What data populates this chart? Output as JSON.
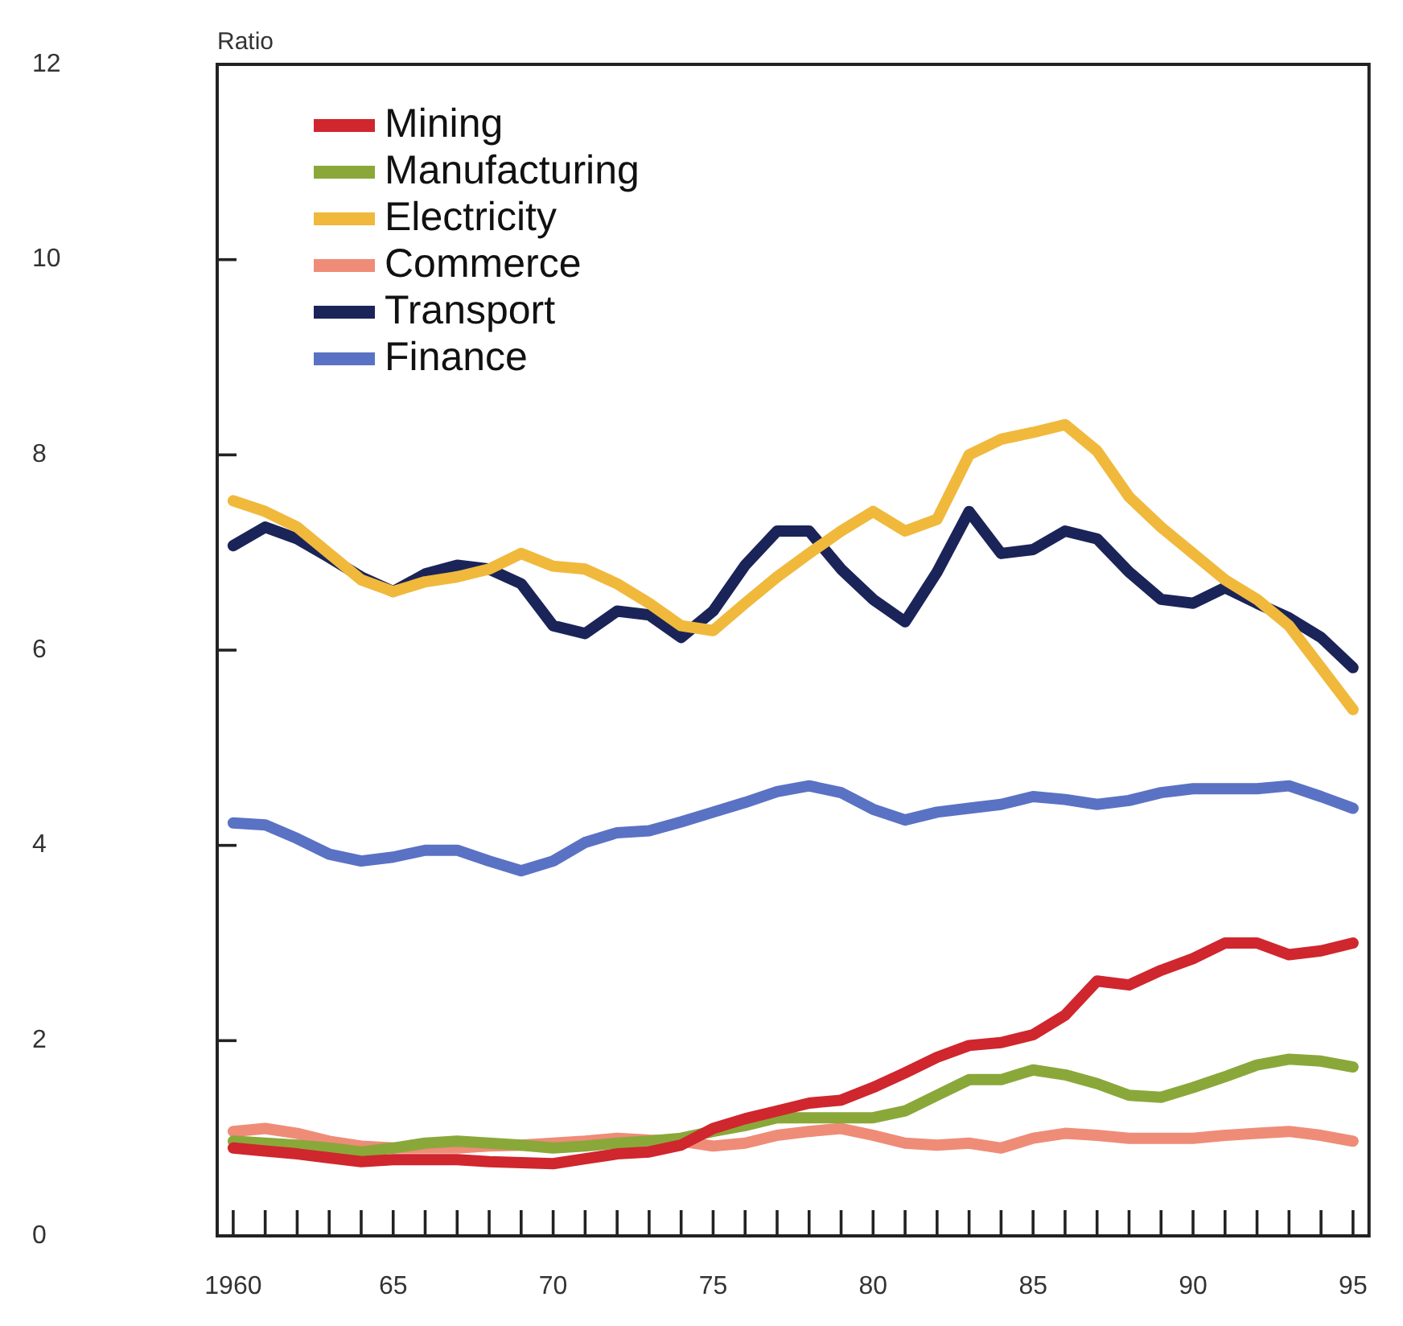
{
  "chart_data": {
    "type": "line",
    "ylabel": "Ratio",
    "x": [
      1960,
      1961,
      1962,
      1963,
      1964,
      1965,
      1966,
      1967,
      1968,
      1969,
      1970,
      1971,
      1972,
      1973,
      1974,
      1975,
      1976,
      1977,
      1978,
      1979,
      1980,
      1981,
      1982,
      1983,
      1984,
      1985,
      1986,
      1987,
      1988,
      1989,
      1990,
      1991,
      1992,
      1993,
      1994,
      1995
    ],
    "series": [
      {
        "name": "Mining",
        "color": "#d0262e",
        "values": [
          0.9,
          0.87,
          0.84,
          0.8,
          0.76,
          0.78,
          0.78,
          0.78,
          0.76,
          0.75,
          0.74,
          0.79,
          0.84,
          0.86,
          0.93,
          1.1,
          1.2,
          1.28,
          1.36,
          1.39,
          1.52,
          1.67,
          1.83,
          1.95,
          1.98,
          2.06,
          2.26,
          2.61,
          2.57,
          2.72,
          2.84,
          3.0,
          3.0,
          2.88,
          2.92,
          3.0
        ]
      },
      {
        "name": "Manufacturing",
        "color": "#8aa83a",
        "values": [
          0.97,
          0.95,
          0.93,
          0.9,
          0.86,
          0.9,
          0.95,
          0.97,
          0.95,
          0.93,
          0.9,
          0.92,
          0.95,
          0.97,
          1.0,
          1.07,
          1.13,
          1.21,
          1.21,
          1.21,
          1.21,
          1.28,
          1.44,
          1.6,
          1.6,
          1.7,
          1.65,
          1.56,
          1.44,
          1.42,
          1.52,
          1.63,
          1.75,
          1.81,
          1.79,
          1.73
        ]
      },
      {
        "name": "Electricity",
        "color": "#f0b93c",
        "values": [
          7.53,
          7.42,
          7.26,
          6.99,
          6.72,
          6.6,
          6.7,
          6.75,
          6.83,
          6.99,
          6.86,
          6.83,
          6.68,
          6.48,
          6.25,
          6.2,
          6.48,
          6.75,
          6.99,
          7.22,
          7.42,
          7.22,
          7.34,
          8.0,
          8.16,
          8.23,
          8.31,
          8.04,
          7.57,
          7.26,
          6.99,
          6.72,
          6.52,
          6.25,
          5.82,
          5.39
        ]
      },
      {
        "name": "Commerce",
        "color": "#ef8c78",
        "values": [
          1.07,
          1.1,
          1.05,
          0.97,
          0.92,
          0.9,
          0.9,
          0.9,
          0.92,
          0.93,
          0.95,
          0.97,
          1.0,
          0.98,
          0.97,
          0.92,
          0.95,
          1.03,
          1.07,
          1.1,
          1.03,
          0.95,
          0.93,
          0.95,
          0.9,
          1.0,
          1.05,
          1.03,
          1.0,
          1.0,
          1.0,
          1.03,
          1.05,
          1.07,
          1.03,
          0.97
        ]
      },
      {
        "name": "Transport",
        "color": "#1b2458",
        "values": [
          7.07,
          7.26,
          7.14,
          6.95,
          6.75,
          6.6,
          6.78,
          6.87,
          6.83,
          6.68,
          6.25,
          6.17,
          6.4,
          6.36,
          6.13,
          6.4,
          6.87,
          7.22,
          7.22,
          6.83,
          6.52,
          6.29,
          6.8,
          7.42,
          6.99,
          7.03,
          7.22,
          7.14,
          6.8,
          6.52,
          6.48,
          6.64,
          6.48,
          6.33,
          6.13,
          5.82
        ]
      },
      {
        "name": "Finance",
        "color": "#5a72c4",
        "values": [
          4.23,
          4.21,
          4.07,
          3.91,
          3.84,
          3.88,
          3.95,
          3.95,
          3.84,
          3.74,
          3.84,
          4.03,
          4.13,
          4.15,
          4.24,
          4.34,
          4.44,
          4.55,
          4.61,
          4.54,
          4.37,
          4.26,
          4.34,
          4.38,
          4.42,
          4.5,
          4.47,
          4.42,
          4.46,
          4.54,
          4.58,
          4.58,
          4.58,
          4.61,
          4.5,
          4.38
        ]
      }
    ],
    "xlim": [
      1959.5,
      1995.5
    ],
    "xticks": [
      {
        "value": 1960,
        "label": "1960"
      },
      {
        "value": 1961,
        "label": null
      },
      {
        "value": 1962,
        "label": null
      },
      {
        "value": 1963,
        "label": null
      },
      {
        "value": 1964,
        "label": null
      },
      {
        "value": 1965,
        "label": "65"
      },
      {
        "value": 1966,
        "label": null
      },
      {
        "value": 1967,
        "label": null
      },
      {
        "value": 1968,
        "label": null
      },
      {
        "value": 1969,
        "label": null
      },
      {
        "value": 1970,
        "label": "70"
      },
      {
        "value": 1971,
        "label": null
      },
      {
        "value": 1972,
        "label": null
      },
      {
        "value": 1973,
        "label": null
      },
      {
        "value": 1974,
        "label": null
      },
      {
        "value": 1975,
        "label": "75"
      },
      {
        "value": 1976,
        "label": null
      },
      {
        "value": 1977,
        "label": null
      },
      {
        "value": 1978,
        "label": null
      },
      {
        "value": 1979,
        "label": null
      },
      {
        "value": 1980,
        "label": "80"
      },
      {
        "value": 1981,
        "label": null
      },
      {
        "value": 1982,
        "label": null
      },
      {
        "value": 1983,
        "label": null
      },
      {
        "value": 1984,
        "label": null
      },
      {
        "value": 1985,
        "label": "85"
      },
      {
        "value": 1986,
        "label": null
      },
      {
        "value": 1987,
        "label": null
      },
      {
        "value": 1988,
        "label": null
      },
      {
        "value": 1989,
        "label": null
      },
      {
        "value": 1990,
        "label": "90"
      },
      {
        "value": 1991,
        "label": null
      },
      {
        "value": 1992,
        "label": null
      },
      {
        "value": 1993,
        "label": null
      },
      {
        "value": 1994,
        "label": null
      },
      {
        "value": 1995,
        "label": "95"
      }
    ],
    "ylim": [
      0,
      12
    ],
    "yticks": [
      0,
      2,
      4,
      6,
      8,
      10,
      12
    ],
    "legend": "top left",
    "marker": "none",
    "line_style": "solid"
  }
}
